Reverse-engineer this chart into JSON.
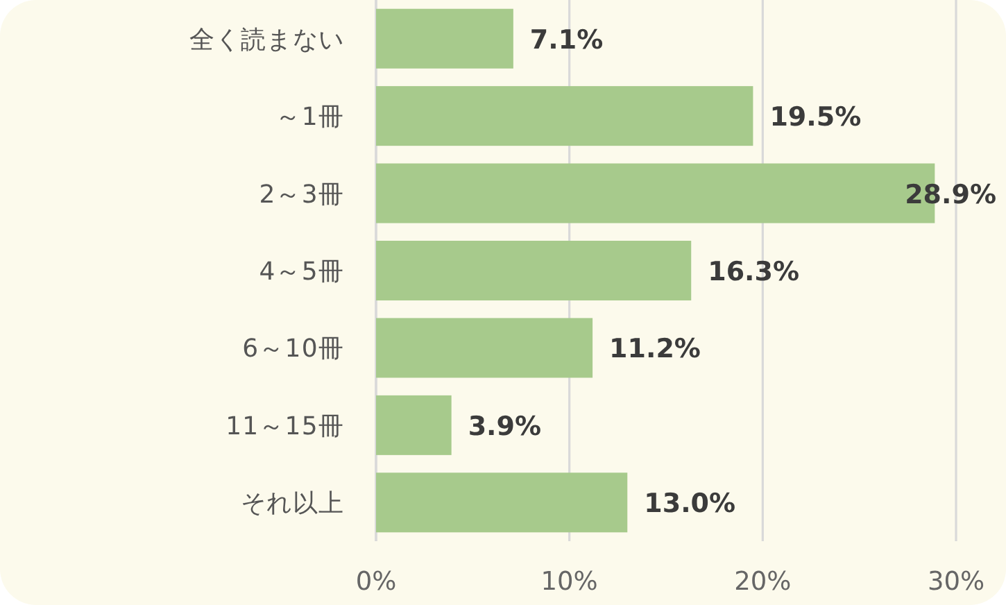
{
  "chart_data": {
    "type": "bar",
    "orientation": "horizontal",
    "categories": [
      "全く読まない",
      "～1冊",
      "2～3冊",
      "4～5冊",
      "6～10冊",
      "11～15冊",
      "それ以上"
    ],
    "values": [
      7.1,
      19.5,
      28.9,
      16.3,
      11.2,
      3.9,
      13.0
    ],
    "value_labels": [
      "7.1%",
      "19.5%",
      "28.9%",
      "16.3%",
      "11.2%",
      "3.9%",
      "13.0%"
    ],
    "color": "#a7ca8c",
    "xlim": [
      0,
      30
    ],
    "xticks": [
      {
        "value": 0,
        "label": "0%"
      },
      {
        "value": 10,
        "label": "10%"
      },
      {
        "value": 20,
        "label": "20%"
      },
      {
        "value": 30,
        "label": "30%"
      }
    ],
    "grid": "x"
  }
}
